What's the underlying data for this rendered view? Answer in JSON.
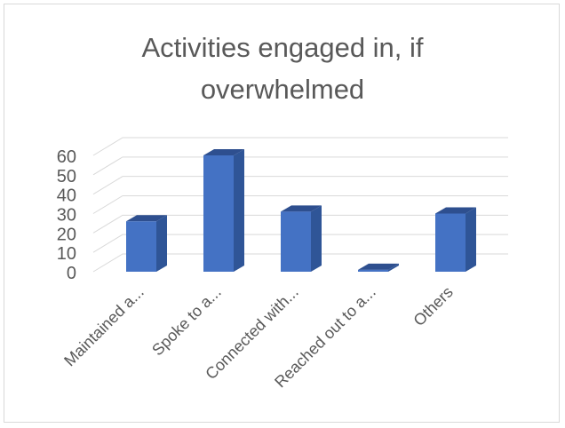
{
  "chart_data": {
    "type": "bar",
    "style": "3d-column",
    "title": "Activities engaged in, if overwhelmed",
    "title_lines": [
      "Activities engaged in, if",
      "overwhelmed"
    ],
    "categories": [
      "Maintained a...",
      "Spoke to a...",
      "Connected with...",
      "Reached out to a...",
      "Others"
    ],
    "values": [
      26,
      60,
      31,
      1,
      30
    ],
    "ylim": [
      0,
      60
    ],
    "yticks": [
      0,
      10,
      20,
      30,
      40,
      50,
      60
    ],
    "xlabel": "",
    "ylabel": "",
    "grid": true,
    "legend": "none",
    "colors": {
      "bar_front": "#4472c4",
      "bar_side": "#2f5597",
      "bar_top": "#2e4f8f",
      "grid": "#d9d9d9",
      "text": "#595959"
    }
  }
}
